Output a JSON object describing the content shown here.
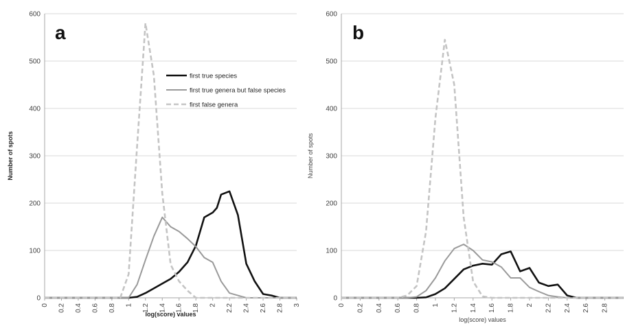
{
  "chart_data": [
    {
      "type": "line",
      "panel_label": "a",
      "xlabel": "log(score) values",
      "ylabel": "Number of spots",
      "xlim": [
        0,
        3
      ],
      "ylim": [
        0,
        600
      ],
      "x_ticks": [
        "0",
        "0.2",
        "0.4",
        "0.6",
        "0.8",
        "1",
        "1.2",
        "1.4",
        "1.6",
        "1.8",
        "2",
        "2.2",
        "2.4",
        "2.6",
        "2.8",
        "3"
      ],
      "y_ticks": [
        "0",
        "100",
        "200",
        "300",
        "400",
        "500",
        "600"
      ],
      "grid": "horizontal",
      "legend_position": "top-center",
      "x": [
        0,
        0.1,
        0.2,
        0.3,
        0.4,
        0.5,
        0.6,
        0.7,
        0.8,
        0.9,
        1.0,
        1.1,
        1.2,
        1.3,
        1.4,
        1.5,
        1.6,
        1.7,
        1.8,
        1.9,
        2.0,
        2.05,
        2.1,
        2.2,
        2.3,
        2.4,
        2.5,
        2.6,
        2.7,
        2.8,
        2.9,
        3.0
      ],
      "series": [
        {
          "name": "first true species",
          "style": "solid-black",
          "values": [
            0,
            0,
            0,
            0,
            0,
            0,
            0,
            0,
            0,
            0,
            0,
            2,
            10,
            20,
            30,
            40,
            55,
            75,
            110,
            170,
            180,
            190,
            218,
            225,
            175,
            72,
            35,
            8,
            5,
            0,
            0,
            0
          ]
        },
        {
          "name": "first true genera but false species",
          "style": "solid-gray",
          "values": [
            0,
            0,
            0,
            0,
            0,
            0,
            0,
            0,
            0,
            0,
            0,
            28,
            80,
            130,
            170,
            150,
            140,
            125,
            108,
            85,
            75,
            55,
            35,
            10,
            5,
            0,
            0,
            0,
            0,
            0,
            0,
            0
          ]
        },
        {
          "name": "first false genera",
          "style": "dashed-gray",
          "values": [
            0,
            0,
            0,
            0,
            0,
            0,
            0,
            0,
            0,
            0,
            50,
            320,
            580,
            470,
            220,
            70,
            35,
            15,
            0,
            0,
            0,
            0,
            0,
            0,
            0,
            0,
            0,
            0,
            0,
            0,
            0,
            0
          ]
        }
      ]
    },
    {
      "type": "line",
      "panel_label": "b",
      "xlabel": "log(score) values",
      "ylabel": "Number of spots",
      "xlim": [
        0,
        3
      ],
      "ylim": [
        0,
        600
      ],
      "x_ticks": [
        "0",
        "0.2",
        "0.4",
        "0.6",
        "0.8",
        "1",
        "1.2",
        "1.4",
        "1.6",
        "1.8",
        "2",
        "2.2",
        "2.4",
        "2.6",
        "2.8"
      ],
      "y_ticks": [
        "0",
        "100",
        "200",
        "300",
        "400",
        "500",
        "600"
      ],
      "grid": "horizontal",
      "x": [
        0,
        0.1,
        0.2,
        0.3,
        0.4,
        0.5,
        0.6,
        0.7,
        0.8,
        0.9,
        1.0,
        1.1,
        1.2,
        1.3,
        1.4,
        1.5,
        1.6,
        1.7,
        1.8,
        1.9,
        2.0,
        2.1,
        2.2,
        2.3,
        2.4,
        2.5,
        2.6,
        2.7,
        2.8,
        2.9,
        3.0
      ],
      "series": [
        {
          "name": "first true species",
          "style": "solid-black",
          "values": [
            0,
            0,
            0,
            0,
            0,
            0,
            0,
            0,
            0,
            1,
            8,
            20,
            40,
            60,
            68,
            72,
            70,
            92,
            98,
            56,
            63,
            32,
            25,
            28,
            5,
            0,
            0,
            0,
            0,
            0,
            0
          ]
        },
        {
          "name": "first true genera but false species",
          "style": "solid-gray",
          "values": [
            0,
            0,
            0,
            0,
            0,
            0,
            0,
            0,
            2,
            15,
            42,
            78,
            104,
            113,
            100,
            80,
            76,
            65,
            42,
            42,
            22,
            13,
            5,
            2,
            0,
            0,
            0,
            0,
            0,
            0,
            0
          ]
        },
        {
          "name": "first false genera",
          "style": "dashed-gray",
          "values": [
            0,
            0,
            0,
            0,
            0,
            0,
            0,
            5,
            25,
            140,
            380,
            545,
            450,
            170,
            35,
            3,
            0,
            0,
            0,
            0,
            0,
            0,
            0,
            0,
            0,
            0,
            0,
            0,
            0,
            0,
            0
          ]
        }
      ]
    }
  ],
  "colors": {
    "series_black": "#111111",
    "series_gray": "#999999",
    "series_dashed": "#c4c4c4",
    "grid": "#d9d9d9",
    "axis": "#a6a6a6"
  }
}
